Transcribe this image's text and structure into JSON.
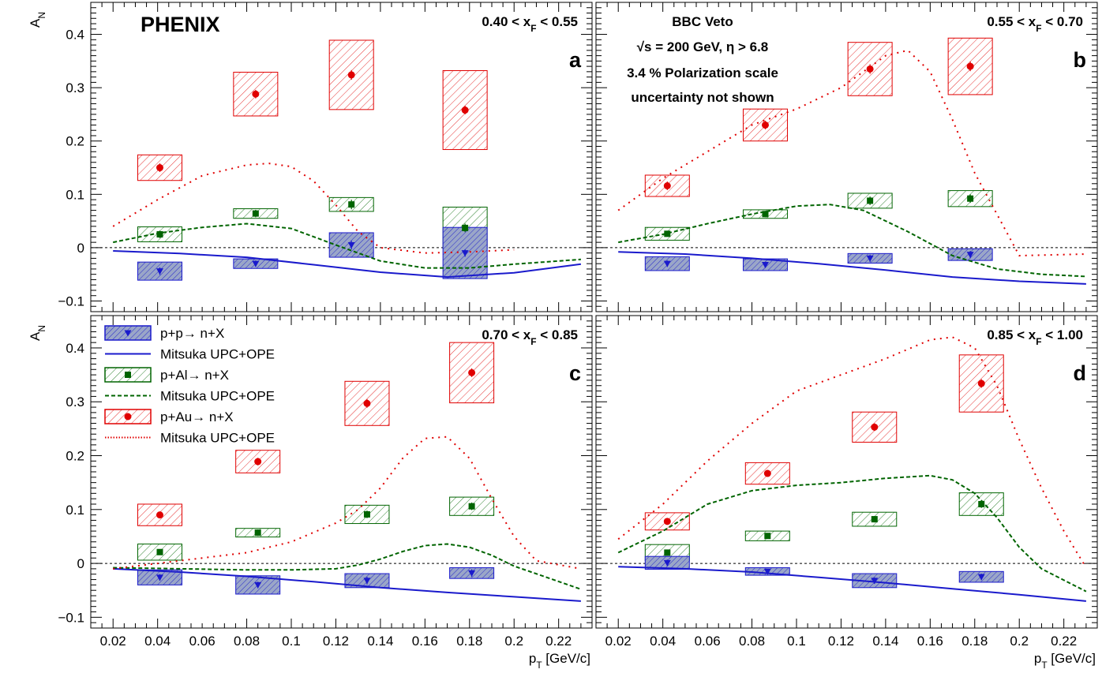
{
  "figure": {
    "brand": "PHENIX",
    "notes": [
      "BBC Veto",
      "√s = 200 GeV,  η > 6.8",
      "3.4 % Polarization scale",
      "uncertainty not shown"
    ],
    "legend": [
      {
        "label": "p+p→ n+X",
        "kind": "box",
        "color": "#1a1acc",
        "marker": "triangle-down"
      },
      {
        "label": "Mitsuka UPC+OPE",
        "kind": "solid",
        "color": "#1a1acc"
      },
      {
        "label": "p+Al→ n+X",
        "kind": "box",
        "color": "#006400",
        "marker": "square"
      },
      {
        "label": "Mitsuka UPC+OPE",
        "kind": "dashed",
        "color": "#006400"
      },
      {
        "label": "p+Au→ n+X",
        "kind": "box",
        "color": "#e00000",
        "marker": "circle"
      },
      {
        "label": "Mitsuka UPC+OPE",
        "kind": "dotted",
        "color": "#e00000"
      }
    ]
  },
  "chart_data": [
    {
      "type": "scatter",
      "panel_label": "a",
      "range_label": "0.40 < x_F < 0.55",
      "ylabel": "A_N",
      "xlabel": "",
      "xlim": [
        0.01,
        0.235
      ],
      "ylim": [
        -0.12,
        0.46
      ],
      "xticks": [
        0.02,
        0.04,
        0.06,
        0.08,
        0.1,
        0.12,
        0.14,
        0.16,
        0.18,
        0.2,
        0.22
      ],
      "xtick_labels": [],
      "yticks": [
        -0.1,
        0,
        0.1,
        0.2,
        0.3,
        0.4
      ],
      "ytick_labels": [
        "−0.1",
        "0",
        "0.1",
        "0.2",
        "0.3",
        "0.4"
      ],
      "series": [
        {
          "key": "pp",
          "points": [
            {
              "x": 0.041,
              "y": -0.044,
              "err": 0.007,
              "sys": 0.017
            },
            {
              "x": 0.084,
              "y": -0.03,
              "err": 0.006,
              "sys": 0.009
            },
            {
              "x": 0.127,
              "y": 0.005,
              "err": 0.008,
              "sys": 0.023
            },
            {
              "x": 0.178,
              "y": -0.01,
              "err": 0.007,
              "sys": 0.048
            }
          ]
        },
        {
          "key": "pAl",
          "points": [
            {
              "x": 0.041,
              "y": 0.025,
              "err": 0.007,
              "sys": 0.014
            },
            {
              "x": 0.084,
              "y": 0.064,
              "err": 0.007,
              "sys": 0.009
            },
            {
              "x": 0.127,
              "y": 0.081,
              "err": 0.009,
              "sys": 0.013
            },
            {
              "x": 0.178,
              "y": 0.037,
              "err": 0.008,
              "sys": 0.039
            }
          ]
        },
        {
          "key": "pAu",
          "points": [
            {
              "x": 0.041,
              "y": 0.15,
              "err": 0.008,
              "sys": 0.024
            },
            {
              "x": 0.084,
              "y": 0.288,
              "err": 0.008,
              "sys": 0.041
            },
            {
              "x": 0.127,
              "y": 0.324,
              "err": 0.009,
              "sys": 0.065
            },
            {
              "x": 0.178,
              "y": 0.258,
              "err": 0.008,
              "sys": 0.074
            }
          ]
        }
      ],
      "curves": [
        {
          "key": "pp",
          "x": [
            0.02,
            0.05,
            0.08,
            0.11,
            0.14,
            0.17,
            0.2,
            0.23
          ],
          "y": [
            -0.006,
            -0.011,
            -0.018,
            -0.032,
            -0.046,
            -0.055,
            -0.047,
            -0.031
          ]
        },
        {
          "key": "pAl",
          "x": [
            0.02,
            0.04,
            0.06,
            0.08,
            0.1,
            0.12,
            0.14,
            0.16,
            0.18,
            0.2,
            0.23
          ],
          "y": [
            0.01,
            0.027,
            0.038,
            0.045,
            0.036,
            0.005,
            -0.025,
            -0.038,
            -0.038,
            -0.031,
            -0.022
          ]
        },
        {
          "key": "pAu",
          "x": [
            0.02,
            0.04,
            0.06,
            0.08,
            0.09,
            0.1,
            0.11,
            0.12,
            0.13,
            0.14,
            0.16,
            0.18,
            0.2
          ],
          "y": [
            0.04,
            0.09,
            0.135,
            0.155,
            0.158,
            0.152,
            0.125,
            0.08,
            0.03,
            0.0,
            -0.01,
            -0.008,
            -0.004
          ]
        }
      ]
    },
    {
      "type": "scatter",
      "panel_label": "b",
      "range_label": "0.55 < x_F < 0.70",
      "ylabel": "",
      "xlabel": "",
      "xlim": [
        0.01,
        0.235
      ],
      "ylim": [
        -0.12,
        0.46
      ],
      "xticks": [
        0.02,
        0.04,
        0.06,
        0.08,
        0.1,
        0.12,
        0.14,
        0.16,
        0.18,
        0.2,
        0.22
      ],
      "xtick_labels": [],
      "yticks": [
        -0.1,
        0,
        0.1,
        0.2,
        0.3,
        0.4
      ],
      "ytick_labels": [],
      "series": [
        {
          "key": "pp",
          "points": [
            {
              "x": 0.042,
              "y": -0.03,
              "err": 0.006,
              "sys": 0.013
            },
            {
              "x": 0.086,
              "y": -0.032,
              "err": 0.006,
              "sys": 0.011
            },
            {
              "x": 0.133,
              "y": -0.02,
              "err": 0.007,
              "sys": 0.009
            },
            {
              "x": 0.178,
              "y": -0.013,
              "err": 0.007,
              "sys": 0.011
            }
          ]
        },
        {
          "key": "pAl",
          "points": [
            {
              "x": 0.042,
              "y": 0.026,
              "err": 0.005,
              "sys": 0.012
            },
            {
              "x": 0.086,
              "y": 0.063,
              "err": 0.006,
              "sys": 0.008
            },
            {
              "x": 0.133,
              "y": 0.088,
              "err": 0.008,
              "sys": 0.014
            },
            {
              "x": 0.178,
              "y": 0.092,
              "err": 0.008,
              "sys": 0.015
            }
          ]
        },
        {
          "key": "pAu",
          "points": [
            {
              "x": 0.042,
              "y": 0.116,
              "err": 0.008,
              "sys": 0.02
            },
            {
              "x": 0.086,
              "y": 0.23,
              "err": 0.008,
              "sys": 0.03
            },
            {
              "x": 0.133,
              "y": 0.335,
              "err": 0.009,
              "sys": 0.05
            },
            {
              "x": 0.178,
              "y": 0.34,
              "err": 0.009,
              "sys": 0.053
            }
          ]
        }
      ],
      "curves": [
        {
          "key": "pp",
          "x": [
            0.02,
            0.05,
            0.08,
            0.11,
            0.14,
            0.17,
            0.2,
            0.23
          ],
          "y": [
            -0.008,
            -0.012,
            -0.02,
            -0.03,
            -0.042,
            -0.055,
            -0.063,
            -0.068
          ]
        },
        {
          "key": "pAl",
          "x": [
            0.02,
            0.04,
            0.06,
            0.08,
            0.1,
            0.115,
            0.13,
            0.15,
            0.17,
            0.19,
            0.21,
            0.23
          ],
          "y": [
            0.01,
            0.025,
            0.045,
            0.063,
            0.078,
            0.081,
            0.07,
            0.03,
            -0.015,
            -0.04,
            -0.05,
            -0.054
          ]
        },
        {
          "key": "pAu",
          "x": [
            0.02,
            0.04,
            0.06,
            0.08,
            0.1,
            0.12,
            0.13,
            0.14,
            0.15,
            0.16,
            0.17,
            0.18,
            0.2,
            0.23
          ],
          "y": [
            0.07,
            0.13,
            0.18,
            0.23,
            0.26,
            0.3,
            0.33,
            0.36,
            0.37,
            0.33,
            0.24,
            0.14,
            -0.015,
            -0.012
          ]
        }
      ]
    },
    {
      "type": "scatter",
      "panel_label": "c",
      "range_label": "0.70 < x_F < 0.85",
      "ylabel": "A_N",
      "xlabel": "p_T [GeV/c]",
      "xlim": [
        0.01,
        0.235
      ],
      "ylim": [
        -0.12,
        0.46
      ],
      "xticks": [
        0.02,
        0.04,
        0.06,
        0.08,
        0.1,
        0.12,
        0.14,
        0.16,
        0.18,
        0.2,
        0.22
      ],
      "xtick_labels": [
        "0.02",
        "0.04",
        "0.06",
        "0.08",
        "0.1",
        "0.12",
        "0.14",
        "0.16",
        "0.18",
        "0.2",
        "0.22"
      ],
      "yticks": [
        -0.1,
        0,
        0.1,
        0.2,
        0.3,
        0.4
      ],
      "ytick_labels": [
        "−0.1",
        "0",
        "0.1",
        "0.2",
        "0.3",
        "0.4"
      ],
      "series": [
        {
          "key": "pp",
          "points": [
            {
              "x": 0.041,
              "y": -0.026,
              "err": 0.006,
              "sys": 0.014
            },
            {
              "x": 0.085,
              "y": -0.04,
              "err": 0.006,
              "sys": 0.017
            },
            {
              "x": 0.134,
              "y": -0.032,
              "err": 0.007,
              "sys": 0.013
            },
            {
              "x": 0.181,
              "y": -0.018,
              "err": 0.007,
              "sys": 0.01
            }
          ]
        },
        {
          "key": "pAl",
          "points": [
            {
              "x": 0.041,
              "y": 0.021,
              "err": 0.005,
              "sys": 0.015
            },
            {
              "x": 0.085,
              "y": 0.057,
              "err": 0.006,
              "sys": 0.008
            },
            {
              "x": 0.134,
              "y": 0.091,
              "err": 0.007,
              "sys": 0.017
            },
            {
              "x": 0.181,
              "y": 0.106,
              "err": 0.007,
              "sys": 0.017
            }
          ]
        },
        {
          "key": "pAu",
          "points": [
            {
              "x": 0.041,
              "y": 0.09,
              "err": 0.006,
              "sys": 0.02
            },
            {
              "x": 0.085,
              "y": 0.189,
              "err": 0.007,
              "sys": 0.021
            },
            {
              "x": 0.134,
              "y": 0.297,
              "err": 0.008,
              "sys": 0.041
            },
            {
              "x": 0.181,
              "y": 0.354,
              "err": 0.008,
              "sys": 0.056
            }
          ]
        }
      ],
      "curves": [
        {
          "key": "pp",
          "x": [
            0.02,
            0.05,
            0.08,
            0.11,
            0.14,
            0.17,
            0.2,
            0.23
          ],
          "y": [
            -0.01,
            -0.016,
            -0.024,
            -0.034,
            -0.045,
            -0.054,
            -0.062,
            -0.07
          ]
        },
        {
          "key": "pAl",
          "x": [
            0.02,
            0.05,
            0.08,
            0.1,
            0.12,
            0.13,
            0.14,
            0.15,
            0.16,
            0.17,
            0.18,
            0.19,
            0.2,
            0.23
          ],
          "y": [
            -0.008,
            -0.01,
            -0.012,
            -0.012,
            -0.01,
            -0.003,
            0.008,
            0.022,
            0.033,
            0.036,
            0.03,
            0.015,
            -0.005,
            -0.048
          ]
        },
        {
          "key": "pAu",
          "x": [
            0.02,
            0.05,
            0.08,
            0.1,
            0.12,
            0.13,
            0.14,
            0.15,
            0.16,
            0.17,
            0.18,
            0.19,
            0.2,
            0.21,
            0.23
          ],
          "y": [
            -0.01,
            0.005,
            0.02,
            0.04,
            0.075,
            0.1,
            0.14,
            0.195,
            0.232,
            0.235,
            0.195,
            0.12,
            0.05,
            0.005,
            -0.01
          ]
        }
      ]
    },
    {
      "type": "scatter",
      "panel_label": "d",
      "range_label": "0.85 < x_F < 1.00",
      "ylabel": "",
      "xlabel": "p_T [GeV/c]",
      "xlim": [
        0.01,
        0.235
      ],
      "ylim": [
        -0.12,
        0.46
      ],
      "xticks": [
        0.02,
        0.04,
        0.06,
        0.08,
        0.1,
        0.12,
        0.14,
        0.16,
        0.18,
        0.2,
        0.22
      ],
      "xtick_labels": [
        "0.02",
        "0.04",
        "0.06",
        "0.08",
        "0.1",
        "0.12",
        "0.14",
        "0.16",
        "0.18",
        "0.2",
        "0.22"
      ],
      "yticks": [
        -0.1,
        0,
        0.1,
        0.2,
        0.3,
        0.4
      ],
      "ytick_labels": [],
      "series": [
        {
          "key": "pp",
          "points": [
            {
              "x": 0.042,
              "y": 0.001,
              "err": 0.006,
              "sys": 0.012
            },
            {
              "x": 0.087,
              "y": -0.015,
              "err": 0.005,
              "sys": 0.007
            },
            {
              "x": 0.135,
              "y": -0.032,
              "err": 0.006,
              "sys": 0.013
            },
            {
              "x": 0.183,
              "y": -0.025,
              "err": 0.006,
              "sys": 0.01
            }
          ]
        },
        {
          "key": "pAl",
          "points": [
            {
              "x": 0.042,
              "y": 0.02,
              "err": 0.005,
              "sys": 0.015
            },
            {
              "x": 0.087,
              "y": 0.051,
              "err": 0.005,
              "sys": 0.009
            },
            {
              "x": 0.135,
              "y": 0.082,
              "err": 0.006,
              "sys": 0.013
            },
            {
              "x": 0.183,
              "y": 0.11,
              "err": 0.007,
              "sys": 0.021
            }
          ]
        },
        {
          "key": "pAu",
          "points": [
            {
              "x": 0.042,
              "y": 0.078,
              "err": 0.006,
              "sys": 0.016
            },
            {
              "x": 0.087,
              "y": 0.167,
              "err": 0.006,
              "sys": 0.02
            },
            {
              "x": 0.135,
              "y": 0.253,
              "err": 0.007,
              "sys": 0.028
            },
            {
              "x": 0.183,
              "y": 0.334,
              "err": 0.008,
              "sys": 0.053
            }
          ]
        }
      ],
      "curves": [
        {
          "key": "pp",
          "x": [
            0.02,
            0.05,
            0.08,
            0.11,
            0.14,
            0.17,
            0.2,
            0.23
          ],
          "y": [
            -0.006,
            -0.01,
            -0.016,
            -0.026,
            -0.036,
            -0.047,
            -0.058,
            -0.07
          ]
        },
        {
          "key": "pAl",
          "x": [
            0.02,
            0.04,
            0.06,
            0.08,
            0.1,
            0.12,
            0.14,
            0.16,
            0.17,
            0.18,
            0.19,
            0.2,
            0.21,
            0.23
          ],
          "y": [
            0.02,
            0.06,
            0.11,
            0.135,
            0.145,
            0.15,
            0.158,
            0.163,
            0.155,
            0.13,
            0.085,
            0.03,
            -0.01,
            -0.052
          ]
        },
        {
          "key": "pAu",
          "x": [
            0.02,
            0.04,
            0.06,
            0.08,
            0.1,
            0.12,
            0.14,
            0.16,
            0.17,
            0.18,
            0.19,
            0.2,
            0.21,
            0.22,
            0.23
          ],
          "y": [
            0.045,
            0.11,
            0.19,
            0.26,
            0.32,
            0.35,
            0.38,
            0.415,
            0.42,
            0.4,
            0.33,
            0.23,
            0.14,
            0.06,
            -0.008
          ]
        }
      ]
    }
  ]
}
